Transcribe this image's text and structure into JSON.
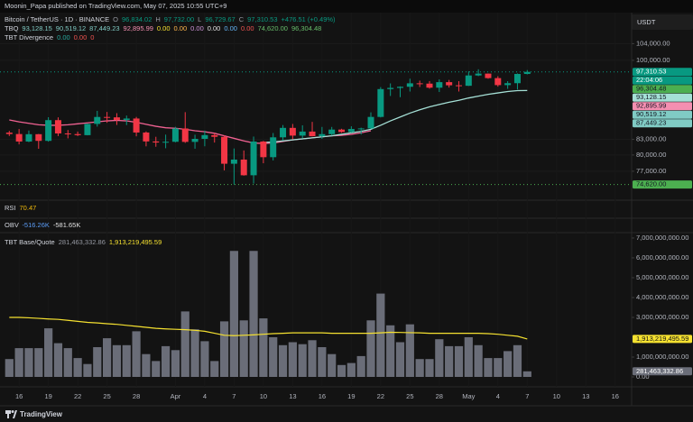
{
  "header": {
    "publisher": "Moonin_Papa published on TradingView.com, May 07, 2025 10:55 UTC+9",
    "currency_label": "USDT",
    "footer": "TradingView"
  },
  "legends": [
    {
      "items": [
        {
          "text": "Bitcoin / TetherUS · 1D · BINANCE",
          "color": "#d1d4dc"
        },
        {
          "text": "O",
          "color": "#9598a1"
        },
        {
          "text": "96,834.02",
          "color": "#089981"
        },
        {
          "text": "H",
          "color": "#9598a1"
        },
        {
          "text": "97,732.00",
          "color": "#089981"
        },
        {
          "text": "L",
          "color": "#9598a1"
        },
        {
          "text": "96,729.67",
          "color": "#089981"
        },
        {
          "text": "C",
          "color": "#9598a1"
        },
        {
          "text": "97,310.53",
          "color": "#089981"
        },
        {
          "text": "+476.51 (+0.49%)",
          "color": "#089981"
        }
      ]
    },
    {
      "items": [
        {
          "text": "TBQ",
          "color": "#d1d4dc"
        },
        {
          "text": "93,128.15",
          "color": "#80cbc4"
        },
        {
          "text": "90,519.12",
          "color": "#80cbc4"
        },
        {
          "text": "87,449.23",
          "color": "#80cbc4"
        },
        {
          "text": "92,895.99",
          "color": "#f48fb1"
        },
        {
          "text": "0.00",
          "color": "#f5e130"
        },
        {
          "text": "0.00",
          "color": "#ffb74d"
        },
        {
          "text": "0.00",
          "color": "#ce93d8"
        },
        {
          "text": "0.00",
          "color": "#e0e0e0"
        },
        {
          "text": "0.00",
          "color": "#64b5f6"
        },
        {
          "text": "0.00",
          "color": "#ef5350"
        },
        {
          "text": "74,620.00",
          "color": "#66bb6a"
        },
        {
          "text": "96,304.48",
          "color": "#66bb6a"
        }
      ]
    },
    {
      "items": [
        {
          "text": "TBT Divergence",
          "color": "#d1d4dc"
        },
        {
          "text": "0.00",
          "color": "#26a69a"
        },
        {
          "text": "0.00",
          "color": "#ef5350"
        },
        {
          "text": "0",
          "color": "#ef5350"
        }
      ]
    },
    {
      "items": [
        {
          "text": "RSI",
          "color": "#d1d4dc"
        },
        {
          "text": "70.47",
          "color": "#f0b90b"
        }
      ]
    },
    {
      "items": [
        {
          "text": "OBV",
          "color": "#d1d4dc"
        },
        {
          "text": "-516.26K",
          "color": "#5b9cf6"
        },
        {
          "text": "-581.65K",
          "color": "#e0e0e0"
        }
      ]
    },
    {
      "items": [
        {
          "text": "TBT Base/Quote",
          "color": "#d1d4dc"
        },
        {
          "text": "281,463,332.86",
          "color": "#9598a1"
        },
        {
          "text": "1,913,219,495.59",
          "color": "#f5e130"
        }
      ]
    }
  ],
  "chart_data": [
    {
      "type": "candlestick",
      "log_scale": true,
      "up_color": "#089981",
      "down_color": "#f23645",
      "categories": [
        null,
        "16",
        null,
        null,
        "19",
        null,
        null,
        "22",
        null,
        null,
        "25",
        null,
        null,
        "28",
        null,
        null,
        null,
        "Apr",
        null,
        null,
        "4",
        null,
        null,
        "7",
        null,
        null,
        "10",
        null,
        null,
        "13",
        null,
        null,
        "16",
        null,
        null,
        "19",
        null,
        null,
        "22",
        null,
        null,
        "25",
        null,
        null,
        "28",
        null,
        null,
        "May",
        null,
        null,
        "4",
        null,
        null,
        "7",
        null,
        null,
        "10",
        null,
        null,
        "13",
        null,
        null,
        "16"
      ],
      "open": [
        84330,
        84050,
        82580,
        84020,
        82710,
        86850,
        84170,
        84040,
        83830,
        86080,
        87500,
        87420,
        86900,
        87180,
        84350,
        82600,
        82390,
        82530,
        85160,
        82510,
        83100,
        83840,
        83500,
        78370,
        79140,
        76270,
        82580,
        79590,
        83400,
        85280,
        83740,
        84540,
        83620,
        84030,
        84940,
        84450,
        85060,
        85170,
        87510,
        93440,
        93700,
        93950,
        94720,
        94650,
        93750,
        94980,
        94280,
        94170,
        96490,
        96910,
        95890,
        94320,
        94750,
        96834.02,
        null,
        null,
        null,
        null,
        null,
        null,
        null,
        null,
        null
      ],
      "high": [
        84680,
        85050,
        84750,
        84060,
        87450,
        87420,
        84850,
        84540,
        86130,
        88770,
        88540,
        88290,
        87790,
        87510,
        84570,
        83510,
        83940,
        85490,
        88500,
        83920,
        84720,
        84220,
        83760,
        81240,
        80860,
        83550,
        82700,
        84250,
        85850,
        86070,
        85800,
        86490,
        85470,
        85470,
        85100,
        85600,
        85320,
        88460,
        93880,
        94700,
        94060,
        95760,
        95320,
        95220,
        95600,
        95480,
        95210,
        97440,
        97900,
        96950,
        96330,
        95200,
        96940,
        97732,
        null,
        null,
        null,
        null,
        null,
        null,
        null,
        null,
        null
      ],
      "low": [
        83660,
        82030,
        82460,
        81180,
        82560,
        83650,
        83200,
        83650,
        83790,
        85540,
        86310,
        85870,
        85850,
        83600,
        81650,
        81570,
        81280,
        82430,
        82320,
        81190,
        81660,
        82380,
        77150,
        74620,
        76200,
        74800,
        78460,
        78980,
        82770,
        83030,
        83180,
        83600,
        83110,
        83760,
        84300,
        84330,
        83950,
        85140,
        87400,
        91940,
        91690,
        92900,
        93900,
        93530,
        92800,
        93780,
        92910,
        94130,
        96340,
        95750,
        93980,
        93500,
        93360,
        96729.67,
        null,
        null,
        null,
        null,
        null,
        null,
        null,
        null,
        null
      ],
      "close": [
        84050,
        82580,
        84020,
        82710,
        86850,
        84170,
        84040,
        83830,
        86080,
        87500,
        87420,
        86900,
        87180,
        84350,
        82600,
        82390,
        82530,
        85160,
        82510,
        83100,
        83840,
        83500,
        78370,
        79140,
        76270,
        82580,
        79590,
        83400,
        85280,
        83740,
        84540,
        83620,
        84030,
        84940,
        84450,
        85060,
        85170,
        87510,
        93440,
        93700,
        93950,
        94720,
        94650,
        93750,
        94980,
        94280,
        94170,
        96490,
        96910,
        95890,
        94320,
        94750,
        96834.02,
        97310.53,
        null,
        null,
        null,
        null,
        null,
        null,
        null,
        null,
        null
      ],
      "series": [
        {
          "color": "#f06292",
          "values": [
            86900,
            86500,
            86200,
            85900,
            85800,
            85800,
            85900,
            86100,
            86300,
            86500,
            86700,
            86800,
            86700,
            86400,
            86000,
            85600,
            85300,
            85200,
            85000,
            84700,
            84500,
            84200,
            83700,
            83200,
            82700,
            82300,
            82200,
            82300,
            82600,
            82900,
            83100,
            83300,
            83500,
            83700,
            83800,
            84000,
            84300,
            84700,
            null,
            null,
            null,
            null,
            null,
            null,
            null,
            null,
            null,
            null,
            null,
            null,
            null,
            null,
            null,
            null,
            null,
            null,
            null,
            null,
            null,
            null,
            null,
            null,
            null
          ]
        },
        {
          "color": "#a5e0d6",
          "values": [
            null,
            null,
            null,
            null,
            null,
            null,
            null,
            null,
            null,
            null,
            null,
            null,
            null,
            null,
            null,
            null,
            null,
            null,
            null,
            null,
            null,
            null,
            null,
            null,
            null,
            null,
            82400,
            82500,
            82700,
            82900,
            83100,
            83300,
            83500,
            83700,
            84000,
            84300,
            84600,
            85000,
            85800,
            86700,
            87500,
            88300,
            89000,
            89600,
            90100,
            90600,
            91000,
            91500,
            91900,
            92300,
            92600,
            92900,
            93100,
            93128.15,
            null,
            null,
            null,
            null,
            null,
            null,
            null,
            null,
            null
          ]
        }
      ],
      "ylim": [
        73000,
        110000
      ],
      "yticks": [
        {
          "value": 104000,
          "label": "104,000.00"
        },
        {
          "value": 100000,
          "label": "100,000.00"
        },
        {
          "value": 83000,
          "label": "83,000.00"
        },
        {
          "value": 80000,
          "label": "80,000.00"
        },
        {
          "value": 77000,
          "label": "77,000.00"
        }
      ],
      "grid": true,
      "countdown": "22:04:06",
      "price_labels": [
        {
          "value": 97310.53,
          "label": "97,310.53",
          "color": "#089981",
          "text_color": "#ffffff",
          "dotted": true
        },
        {
          "value": 96304.48,
          "label": "96,304.48",
          "color": "#4caf50",
          "text_color": "#131722"
        },
        {
          "value": 93128.15,
          "label": "93,128.15",
          "color": "#a5e0d6",
          "text_color": "#131722"
        },
        {
          "value": 92895.99,
          "label": "92,895.99",
          "color": "#f48fb1",
          "text_color": "#131722"
        },
        {
          "value": 90519.12,
          "label": "90,519.12",
          "color": "#80cbc4",
          "text_color": "#131722"
        },
        {
          "value": 87449.23,
          "label": "87,449.23",
          "color": "#80cbc4",
          "text_color": "#131722"
        },
        {
          "value": 74620,
          "label": "74,620.00",
          "color": "#4caf50",
          "text_color": "#131722",
          "dotted": true
        }
      ]
    },
    {
      "type": "bar",
      "color": "#6a6d78",
      "values": [
        900000000,
        1450000000,
        1450000000,
        1450000000,
        2450000000,
        1700000000,
        1450000000,
        950000000,
        650000000,
        1500000000,
        1950000000,
        1600000000,
        1600000000,
        2300000000,
        1150000000,
        800000000,
        1550000000,
        1350000000,
        3300000000,
        2400000000,
        1800000000,
        800000000,
        2800000000,
        6350000000,
        2850000000,
        6350000000,
        2950000000,
        2000000000,
        1600000000,
        1750000000,
        1650000000,
        1850000000,
        1500000000,
        1150000000,
        600000000,
        700000000,
        1050000000,
        2850000000,
        4200000000,
        2600000000,
        1750000000,
        2650000000,
        900000000,
        900000000,
        1900000000,
        1550000000,
        1550000000,
        2000000000,
        1600000000,
        950000000,
        950000000,
        1300000000,
        1600000000,
        281463332.86,
        null,
        null,
        null,
        null,
        null,
        null,
        null,
        null,
        null
      ],
      "line": {
        "color": "#f5e130",
        "values": [
          3000000000,
          3000000000,
          2980000000,
          2950000000,
          2920000000,
          2900000000,
          2850000000,
          2800000000,
          2750000000,
          2720000000,
          2680000000,
          2650000000,
          2600000000,
          2550000000,
          2500000000,
          2450000000,
          2420000000,
          2400000000,
          2380000000,
          2350000000,
          2300000000,
          2200000000,
          2100000000,
          2080000000,
          2100000000,
          2120000000,
          2150000000,
          2180000000,
          2200000000,
          2220000000,
          2220000000,
          2220000000,
          2220000000,
          2200000000,
          2200000000,
          2200000000,
          2200000000,
          2200000000,
          2220000000,
          2250000000,
          2240000000,
          2230000000,
          2220000000,
          2200000000,
          2200000000,
          2200000000,
          2200000000,
          2200000000,
          2200000000,
          2180000000,
          2150000000,
          2100000000,
          2050000000,
          1913219495.59,
          null,
          null,
          null,
          null,
          null,
          null,
          null,
          null,
          null
        ]
      },
      "ylim": [
        0,
        7180000000
      ],
      "yticks": [
        {
          "value": 7000000000,
          "label": "7,000,000,000.00"
        },
        {
          "value": 6000000000,
          "label": "6,000,000,000.00"
        },
        {
          "value": 5000000000,
          "label": "5,000,000,000.00"
        },
        {
          "value": 4000000000,
          "label": "4,000,000,000.00"
        },
        {
          "value": 3000000000,
          "label": "3,000,000,000.00"
        },
        {
          "value": 1000000000,
          "label": "1,000,000,000.00"
        },
        {
          "value": 0,
          "label": "0.00"
        }
      ]
    }
  ]
}
